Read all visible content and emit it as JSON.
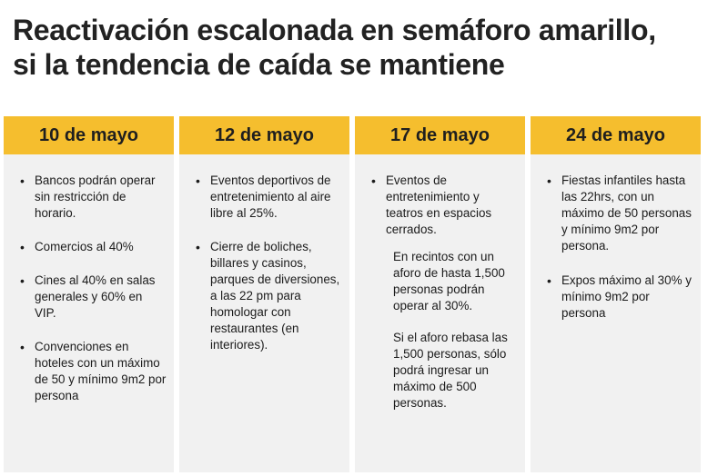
{
  "title": {
    "line1": "Reactivación escalonada en semáforo amarillo,",
    "line2": "si la tendencia de caída se mantiene"
  },
  "columns": [
    {
      "date": "10 de mayo",
      "items": [
        "Bancos podrán operar sin restricción de horario.",
        "Comercios al 40%",
        "Cines al 40% en salas generales y 60% en VIP.",
        "Convenciones en hoteles con un máximo de 50 y mínimo 9m2 por persona"
      ]
    },
    {
      "date": "12 de mayo",
      "items": [
        "Eventos deportivos de entretenimiento al aire libre al 25%.",
        "Cierre de boliches, billares y casinos, parques de diversiones, a las 22 pm para homologar con restaurantes (en interiores)."
      ]
    },
    {
      "date": "17 de mayo",
      "items": [
        "Eventos de entretenimiento y teatros en espacios cerrados."
      ],
      "notes": [
        "En recintos con un aforo de hasta 1,500 personas podrán operar al 30%.",
        "Si el aforo rebasa las 1,500 personas, sólo podrá ingresar un máximo de 500 personas."
      ]
    },
    {
      "date": "24 de mayo",
      "items": [
        "Fiestas infantiles hasta las 22hrs, con un máximo de 50 personas y mínimo 9m2 por persona.",
        "Expos máximo al 30% y mínimo 9m2 por persona"
      ]
    }
  ]
}
